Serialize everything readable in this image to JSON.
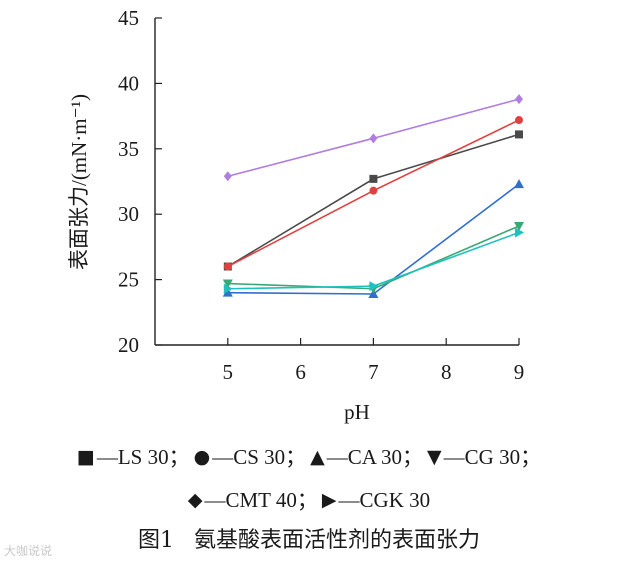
{
  "chart_data": {
    "type": "line",
    "xlabel": "pH",
    "ylabel": "表面张力/(mN·m⁻¹)",
    "x": [
      5,
      7,
      9
    ],
    "xticks": [
      5,
      6,
      7,
      8,
      9
    ],
    "xlim": [
      4.0,
      9.0
    ],
    "ylim": [
      20,
      45
    ],
    "yticks": [
      20,
      25,
      30,
      35,
      40,
      45
    ],
    "grid": false,
    "series": [
      {
        "name": "LS 30",
        "marker": "■",
        "shape": "square",
        "color": "#4a4a4a",
        "values": [
          26.0,
          32.7,
          36.1
        ]
      },
      {
        "name": "CS 30",
        "marker": "●",
        "shape": "circle",
        "color": "#e0403f",
        "values": [
          26.0,
          31.8,
          37.2
        ]
      },
      {
        "name": "CA 30",
        "marker": "▲",
        "shape": "triangle-up",
        "color": "#2f6fcf",
        "values": [
          24.0,
          23.9,
          32.3
        ]
      },
      {
        "name": "CG 30",
        "marker": "▼",
        "shape": "triangle-down",
        "color": "#3aa874",
        "values": [
          24.7,
          24.3,
          29.1
        ]
      },
      {
        "name": "CMT 40",
        "marker": "◆",
        "shape": "diamond",
        "color": "#b07de0",
        "values": [
          32.9,
          35.8,
          38.8
        ]
      },
      {
        "name": "CGK 30",
        "marker": "▶",
        "shape": "triangle-right",
        "color": "#1fc0c0",
        "values": [
          24.3,
          24.5,
          28.6
        ]
      }
    ]
  },
  "legend": {
    "dash": "—",
    "sep": "；",
    "items": [
      {
        "marker": "■",
        "label": "LS 30"
      },
      {
        "marker": "●",
        "label": "CS 30"
      },
      {
        "marker": "▲",
        "label": "CA 30"
      },
      {
        "marker": "▼",
        "label": "CG 30"
      },
      {
        "marker": "◆",
        "label": "CMT 40"
      },
      {
        "marker": "▶",
        "label": "CGK 30"
      }
    ]
  },
  "caption": {
    "number": "图1",
    "text": "氨基酸表面活性剂的表面张力"
  },
  "watermark": "大咖说说"
}
